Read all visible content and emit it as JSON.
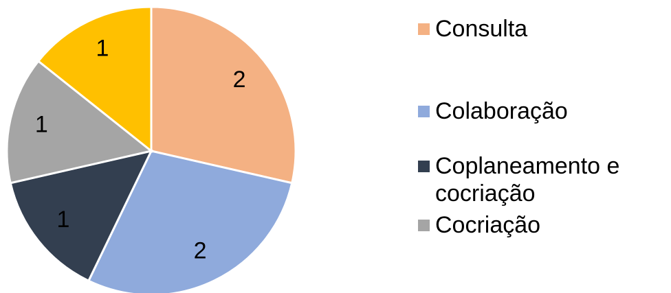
{
  "chart_data": {
    "type": "pie",
    "categories": [
      "Consulta",
      "Colaboração",
      "Coplaneamento e cocriação",
      "Cocriação",
      null
    ],
    "values": [
      2,
      2,
      1,
      1,
      1
    ],
    "colors": [
      "#f4b183",
      "#8faadc",
      "#333f50",
      "#a5a5a5",
      "#ffc000"
    ],
    "legend": "right"
  }
}
